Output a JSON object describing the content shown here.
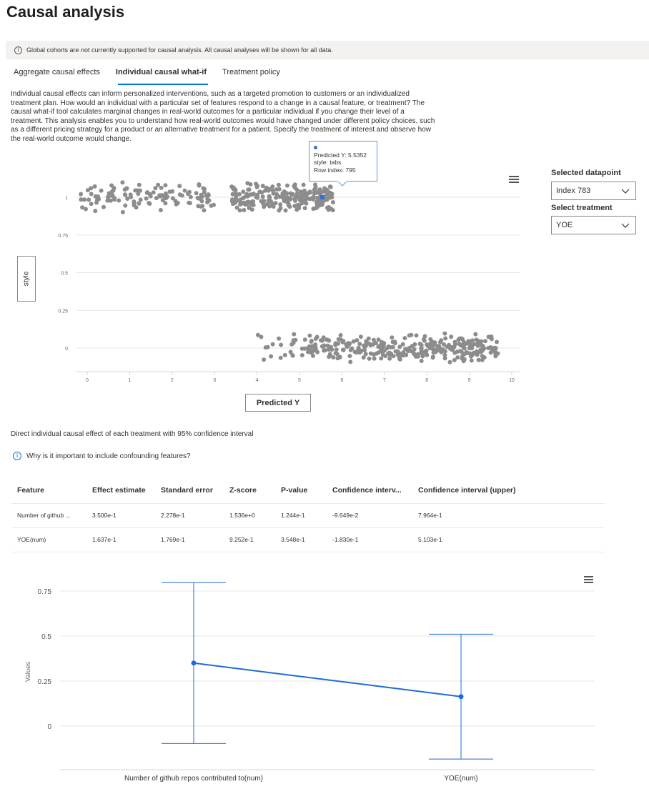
{
  "page_title": "Causal analysis",
  "banner": {
    "text": "Global cohorts are not currently supported for causal analysis. All causal analyses will be shown for all data."
  },
  "tabs": [
    {
      "label": "Aggregate causal effects",
      "active": false
    },
    {
      "label": "Individual causal what-if",
      "active": true
    },
    {
      "label": "Treatment policy",
      "active": false
    }
  ],
  "description": "Individual causal effects can inform personalized interventions, such as a targeted promotion to customers or an individualized treatment plan. How would an individual with a particular set of features respond to a change in a causal feature, or treatment? The causal what-if tool calculates marginal changes in real-world outcomes for a particular individual if you change their level of a treatment. This analysis enables you to understand how real-world outcomes would have changed under different policy choices, such as a different pricing strategy for a product or an alternative treatment for a patient. Specify the treatment of interest and observe how the real-world outcome would change.",
  "controls": {
    "datapoint_label": "Selected datapoint",
    "datapoint_value": "Index 783",
    "treatment_label": "Select treatment",
    "treatment_value": "YOE"
  },
  "scatter": {
    "y_axis_button": "style",
    "x_axis_button": "Predicted Y",
    "x_ticks": [
      "0",
      "1",
      "2",
      "3",
      "4",
      "5",
      "6",
      "7",
      "8",
      "9",
      "10"
    ],
    "y_ticks": [
      "0",
      "0.25",
      "0.5",
      "0.75",
      "1"
    ],
    "point_color": "#8c8c8c",
    "highlight_color": "#2e6fd8",
    "tooltip": {
      "line1": "Predicted Y: 5.5352",
      "line2": "style: tabs",
      "line3": "Row index: 795"
    }
  },
  "effects": {
    "subheading": "Direct individual causal effect of each treatment with 95% confidence interval",
    "info_link": "Why is it important to include confounding features?",
    "columns": [
      "Feature",
      "Effect estimate",
      "Standard error",
      "Z-score",
      "P-value",
      "Confidence interv...",
      "Confidence interval (upper)"
    ],
    "rows": [
      [
        "Number of github ...",
        "3.500e-1",
        "2.278e-1",
        "1.536e+0",
        "1.244e-1",
        "-9.649e-2",
        "7.964e-1"
      ],
      [
        "YOE(num)",
        "1.637e-1",
        "1.769e-1",
        "9.252e-1",
        "3.548e-1",
        "-1.830e-1",
        "5.103e-1"
      ]
    ]
  },
  "chart_data": [
    {
      "type": "scatter",
      "xlabel": "Predicted Y",
      "ylabel": "style",
      "xlim": [
        -0.2,
        10.2
      ],
      "ylim": [
        -0.06,
        1.06
      ],
      "grid": true,
      "clusters": [
        {
          "y": 1,
          "x_range": [
            -0.15,
            3.0
          ],
          "count": 120
        },
        {
          "y": 1,
          "x_range": [
            3.4,
            5.8
          ],
          "count": 230
        },
        {
          "y": 0,
          "x_range": [
            4.0,
            5.6
          ],
          "count": 30
        },
        {
          "y": 0,
          "x_range": [
            5.2,
            9.7
          ],
          "count": 300
        }
      ],
      "highlight": {
        "x": 5.5352,
        "y": 1,
        "style": "tabs",
        "row_index": 795
      }
    },
    {
      "type": "errorbar",
      "ylabel": "Values",
      "categories": [
        "Number of github repos contributed to(num)",
        "YOE(num)"
      ],
      "values": [
        0.35,
        0.1637
      ],
      "lower": [
        -0.09649,
        -0.183
      ],
      "upper": [
        0.7964,
        0.5103
      ],
      "y_ticks": [
        "0",
        "0.25",
        "0.5",
        "0.75"
      ],
      "line_color": "#1f6bd6",
      "grid": true
    }
  ]
}
